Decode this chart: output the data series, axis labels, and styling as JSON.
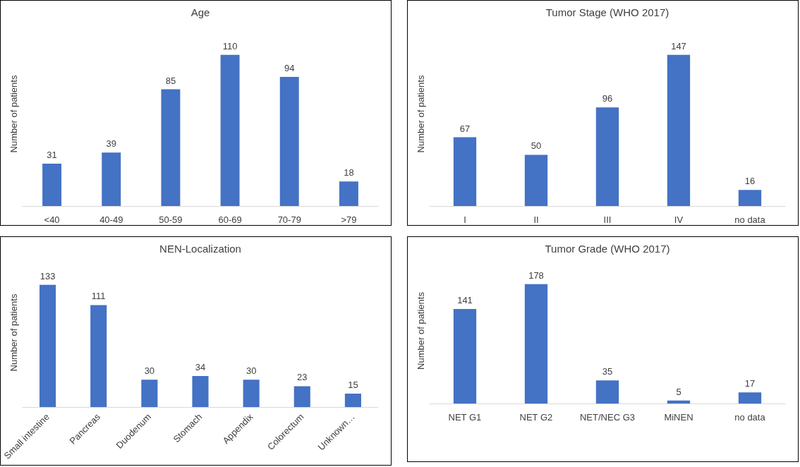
{
  "chart_data": [
    {
      "type": "bar",
      "title": "Age",
      "ylabel": "Number of patients",
      "categories": [
        "<40",
        "40-49",
        "50-59",
        "60-69",
        "70-79",
        ">79"
      ],
      "values": [
        31,
        39,
        85,
        110,
        94,
        18
      ],
      "color": "#4472c4",
      "data_labels": true,
      "tick_labels": "x"
    },
    {
      "type": "bar",
      "title": "Tumor Stage (WHO 2017)",
      "ylabel": "Number of patients",
      "categories": [
        "I",
        "II",
        "III",
        "IV",
        "no data"
      ],
      "values": [
        67,
        50,
        96,
        147,
        16
      ],
      "color": "#4472c4",
      "data_labels": true,
      "tick_labels": "x"
    },
    {
      "type": "bar",
      "title": "NEN-Localization",
      "ylabel": "Number of patients",
      "categories": [
        "Small intestine",
        "Pancreas",
        "Duodenum",
        "Stomach",
        "Appendix",
        "Colorectum",
        "Unknown…"
      ],
      "values": [
        133,
        111,
        30,
        34,
        30,
        23,
        15
      ],
      "color": "#4472c4",
      "data_labels": true,
      "tick_labels": "x"
    },
    {
      "type": "bar",
      "title": "Tumor Grade (WHO 2017)",
      "ylabel": "Number of patients",
      "categories": [
        "NET G1",
        "NET G2",
        "NET/NEC G3",
        "MiNEN",
        "no data"
      ],
      "values": [
        141,
        178,
        35,
        5,
        17
      ],
      "color": "#4472c4",
      "data_labels": true,
      "tick_labels": "x"
    }
  ]
}
